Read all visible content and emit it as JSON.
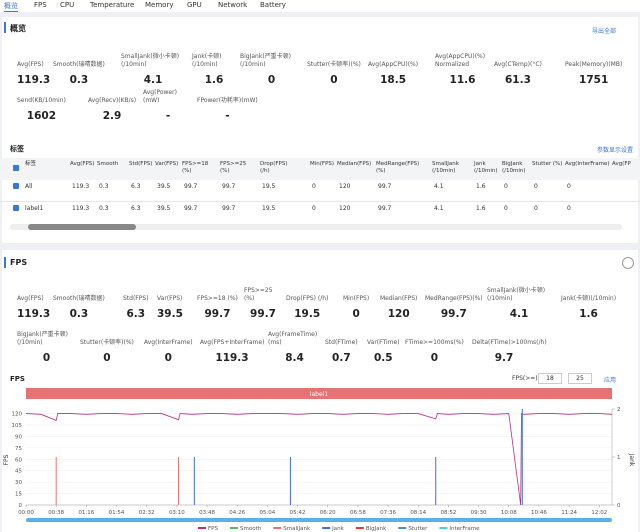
{
  "tabs": [
    "概览",
    "FPS",
    "CPU",
    "Temperature",
    "Memory",
    "GPU",
    "Network",
    "Battery"
  ],
  "overview": {
    "title": "概览",
    "export": "导出全部",
    "metrics": [
      [
        {
          "label": "Avg(FPS)",
          "value": 119.3
        },
        {
          "label": "Smooth(瑞晴数据)",
          "value": 0.3
        },
        {
          "label": "SmallJank(微小卡顿)(/10min)",
          "value": 4.1
        },
        {
          "label": "Jank(卡顿)(/10min)",
          "value": 1.6
        },
        {
          "label": "BigJank(严重卡顿)(/10min)",
          "value": 0
        },
        {
          "label": "Stutter(卡顿率)(%)",
          "value": 0
        },
        {
          "label": "Avg(AppCPU)(%)",
          "value": 18.5
        },
        {
          "label": "Avg(AppCPU)(%) Normalized",
          "value": 11.6
        },
        {
          "label": "Avg(CTemp)(°C)",
          "value": 61.3
        },
        {
          "label": "Peak(Memory)(MB)",
          "value": 1751
        }
      ],
      [
        {
          "label": "Send(KB/10min)",
          "value": 1602
        },
        {
          "label": "Avg(Recv)(KB/s)",
          "value": 2.9
        },
        {
          "label": "Avg(Power)(mW)",
          "value": "-"
        },
        {
          "label": "FPower(功耗率)(mW)",
          "value": "-"
        }
      ]
    ]
  },
  "table": {
    "title": "标签",
    "settings": "参数显示设置",
    "columns": [
      "标签",
      "Avg(FPS)",
      "Smooth",
      "Std(FPS)",
      "Var(FPS)",
      "FPS>=18 (%)",
      "FPS>=25 (%)",
      "Drop(FPS) (/h)",
      "Min(FPS)",
      "Median(FPS)",
      "MedRange(FPS)(%)",
      "SmallJank (/10min)",
      "Jank (/10min)",
      "BigJank (/10min)",
      "Stutter (%)",
      "Avg(InterFrame)",
      "Avg(FP"
    ],
    "rows": [
      [
        "All",
        119.3,
        0.3,
        6.3,
        39.5,
        99.7,
        99.7,
        19.5,
        0,
        120,
        99.7,
        4.1,
        1.6,
        0,
        0,
        0
      ],
      [
        "label1",
        119.3,
        0.3,
        6.3,
        39.5,
        99.7,
        99.7,
        19.5,
        0,
        120,
        99.7,
        4.1,
        1.6,
        0,
        0,
        0
      ]
    ]
  },
  "fps": {
    "title": "FPS",
    "metrics": [
      [
        {
          "label": "Avg(FPS)",
          "value": 119.3
        },
        {
          "label": "Smooth(瑞晴数据)",
          "value": 0.3
        },
        {
          "label": "Std(FPS)",
          "value": 6.3
        },
        {
          "label": "Var(FPS)",
          "value": 39.5
        },
        {
          "label": "FPS>=18 (%)",
          "value": 99.7
        },
        {
          "label": "FPS>=25 (%)",
          "value": 99.7
        },
        {
          "label": "Drop(FPS) (/h)",
          "value": 19.5
        },
        {
          "label": "Min(FPS)",
          "value": 0
        },
        {
          "label": "Median(FPS)",
          "value": 120
        },
        {
          "label": "MedRange(FPS)(%)",
          "value": 99.7
        },
        {
          "label": "SmallJank(微小卡顿)(/10min)",
          "value": 4.1
        },
        {
          "label": "Jank(卡顿)(/10min)",
          "value": 1.6
        }
      ],
      [
        {
          "label": "BigJank(严重卡顿)(/10min)",
          "value": 0
        },
        {
          "label": "Stutter(卡顿率)(%)",
          "value": 0
        },
        {
          "label": "Avg(InterFrame)",
          "value": 0
        },
        {
          "label": "Avg(FPS+InterFrame)",
          "value": 119.3
        },
        {
          "label": "Avg(FrameTime)(ms)",
          "value": 8.4
        },
        {
          "label": "Std(FTime)",
          "value": 0.7
        },
        {
          "label": "Var(FTime)",
          "value": 0.5
        },
        {
          "label": "FTime>=100ms(%)",
          "value": 0
        },
        {
          "label": "Delta(FTime)>100ms(/h)",
          "value": 9.7
        }
      ]
    ]
  },
  "chart_controls": {
    "label": "FPS(>=)",
    "inputs": [
      18,
      25
    ],
    "apply": "应用"
  },
  "chart_data": {
    "type": "line",
    "title": "FPS",
    "label_bar": "label1",
    "y_label": "FPS",
    "y2_label": "Jank",
    "xlim": [
      0,
      738
    ],
    "ylim": [
      0,
      126
    ],
    "y2lim": [
      0,
      2
    ],
    "grid": true,
    "yticks": [
      0,
      15,
      30,
      45,
      60,
      75,
      90,
      105,
      120
    ],
    "y2ticks": [
      0,
      1,
      2
    ],
    "xticks": [
      {
        "value": 0,
        "label": "00:00"
      },
      {
        "value": 38,
        "label": "00:38"
      },
      {
        "value": 76,
        "label": "01:16"
      },
      {
        "value": 114,
        "label": "01:54"
      },
      {
        "value": 152,
        "label": "02:32"
      },
      {
        "value": 190,
        "label": "03:10"
      },
      {
        "value": 228,
        "label": "03:48"
      },
      {
        "value": 266,
        "label": "04:26"
      },
      {
        "value": 304,
        "label": "05:04"
      },
      {
        "value": 342,
        "label": "05:42"
      },
      {
        "value": 380,
        "label": "06:20"
      },
      {
        "value": 418,
        "label": "06:58"
      },
      {
        "value": 456,
        "label": "07:36"
      },
      {
        "value": 494,
        "label": "08:14"
      },
      {
        "value": 532,
        "label": "08:52"
      },
      {
        "value": 570,
        "label": "09:30"
      },
      {
        "value": 608,
        "label": "10:08"
      },
      {
        "value": 646,
        "label": "10:46"
      },
      {
        "value": 684,
        "label": "11:24"
      },
      {
        "value": 722,
        "label": "12:02"
      }
    ],
    "series": [
      {
        "name": "FPS",
        "color": "#b0308a",
        "x": [
          0,
          19,
          38,
          40,
          57,
          76,
          95,
          114,
          133,
          152,
          171,
          192,
          194,
          209,
          228,
          247,
          266,
          285,
          304,
          323,
          342,
          361,
          380,
          399,
          418,
          437,
          456,
          475,
          494,
          516,
          518,
          532,
          551,
          570,
          589,
          608,
          623,
          624,
          627,
          646,
          665,
          684,
          703,
          722,
          738
        ],
        "values": [
          120,
          119,
          111,
          120,
          120,
          119,
          120,
          120,
          119,
          120,
          120,
          112,
          120,
          119,
          120,
          120,
          119,
          120,
          120,
          120,
          119,
          120,
          120,
          119,
          120,
          120,
          119,
          120,
          120,
          113,
          120,
          119,
          120,
          120,
          119,
          120,
          0,
          120,
          119,
          120,
          120,
          119,
          120,
          120,
          119
        ]
      },
      {
        "name": "Smooth",
        "color": "#5cb85c"
      },
      {
        "name": "SmallJank",
        "color": "#e57373",
        "axis": "y2",
        "x": [
          38,
          192
        ],
        "values": [
          1,
          1
        ]
      },
      {
        "name": "Jank",
        "color": "#3f6fd8",
        "axis": "y2",
        "x": [
          212,
          333,
          516,
          625
        ],
        "values": [
          1,
          1,
          1,
          2
        ]
      },
      {
        "name": "BigJank",
        "color": "#e53935"
      },
      {
        "name": "Stutter",
        "color": "#4a90d9"
      },
      {
        "name": "InterFrame",
        "color": "#56c3e8"
      }
    ]
  }
}
